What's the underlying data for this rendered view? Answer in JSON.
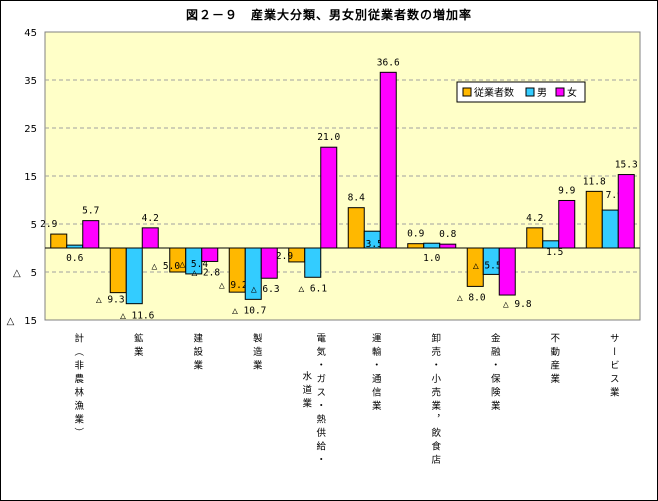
{
  "title": "図２－９　産業大分類、男女別従業者数の増加率",
  "colors": {
    "plot_bg": "#FFFFC8",
    "grid": "#A0A0A0",
    "series": [
      "#FFB800",
      "#33CCFF",
      "#FF00FF"
    ]
  },
  "chart_data": {
    "type": "bar",
    "ylim": [
      -15,
      45
    ],
    "yticks": [
      45,
      35,
      25,
      15,
      5,
      -5,
      -15
    ],
    "ytick_labels": [
      "45",
      "35",
      "25",
      "15",
      "5",
      "△　5",
      "△　15"
    ],
    "grid": true,
    "legend": "top-right",
    "categories": [
      "計（非農林漁業）",
      "鉱業",
      "建設業",
      "製造業",
      "電気・ガス・熱供給・水道業",
      "運輸・通信業",
      "卸売・小売業，飲食店",
      "金融・保険業",
      "不動産業",
      "サービス業"
    ],
    "category_lines": [
      [
        "計（非農林漁業）"
      ],
      [
        "鉱業"
      ],
      [
        "建設業"
      ],
      [
        "製造業"
      ],
      [
        "電気・ガス・熱供給・",
        "水道業"
      ],
      [
        "運輸・通信業"
      ],
      [
        "卸売・小売業，飲食店"
      ],
      [
        "金融・保険業"
      ],
      [
        "不動産業"
      ],
      [
        "サービス業"
      ]
    ],
    "series": [
      {
        "name": "従業者数",
        "values": [
          2.9,
          -9.3,
          -5.0,
          -9.2,
          -2.9,
          8.4,
          0.9,
          -8.0,
          4.2,
          11.8
        ],
        "labels": [
          "2.9",
          "△ 9.3",
          "△ 5.0",
          "△ 9.2",
          "△ 2.9",
          "8.4",
          "0.9",
          "△ 8.0",
          "4.2",
          "11.8"
        ]
      },
      {
        "name": "男",
        "values": [
          0.6,
          -11.6,
          -5.4,
          -10.7,
          -6.1,
          3.5,
          1.0,
          -5.5,
          1.5,
          7.9
        ],
        "labels": [
          "0.6",
          "△ 11.6",
          "△ 5.4",
          "△ 10.7",
          "△ 6.1",
          "3.5",
          "1.0",
          "△ 5.5",
          "1.5",
          "7.9"
        ]
      },
      {
        "name": "女",
        "values": [
          5.7,
          4.2,
          -2.8,
          -6.3,
          21.0,
          36.6,
          0.8,
          -9.8,
          9.9,
          15.3
        ],
        "labels": [
          "5.7",
          "4.2",
          "△ 2.8",
          "△ 6.3",
          "21.0",
          "36.6",
          "0.8",
          "△ 9.8",
          "9.9",
          "15.3"
        ]
      }
    ]
  }
}
